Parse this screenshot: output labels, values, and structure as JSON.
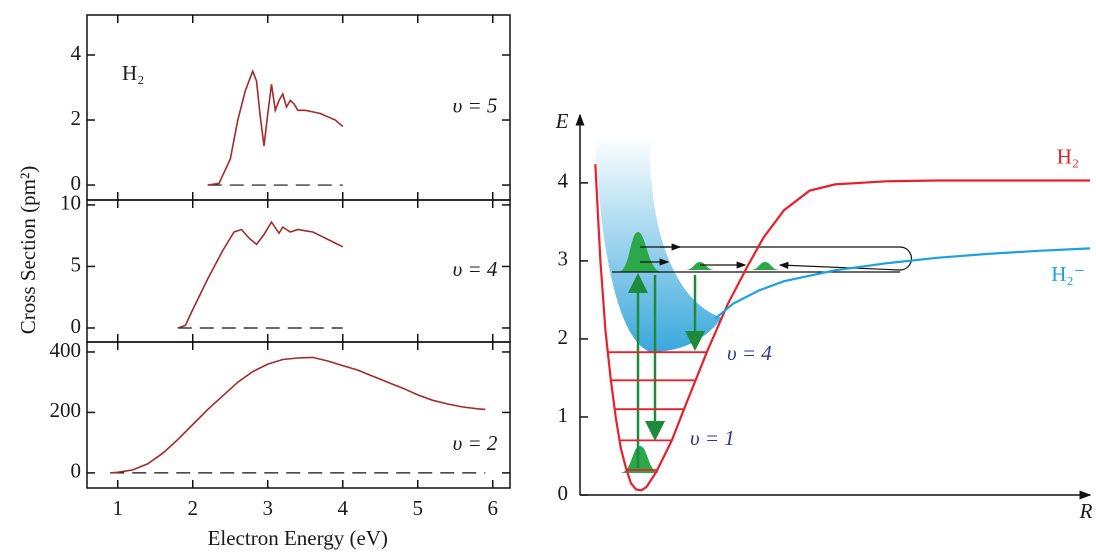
{
  "chart_data": [
    {
      "type": "stacked-line",
      "xlabel": "Electron Energy (eV)",
      "ylabel": "Cross Section (pm²)",
      "annotation": "H₂",
      "xlim": [
        0.59,
        6.23
      ],
      "xticks": [
        1,
        2,
        3,
        4,
        5,
        6
      ],
      "color": "#a52a2a",
      "panels": [
        {
          "label": "υ = 5",
          "ylim": [
            -0.46,
            5.23
          ],
          "yticks": [
            0,
            2,
            4
          ],
          "x": [
            2.2,
            2.35,
            2.5,
            2.6,
            2.7,
            2.8,
            2.85,
            2.9,
            2.95,
            3.0,
            3.05,
            3.1,
            3.15,
            3.2,
            3.25,
            3.3,
            3.35,
            3.4,
            3.5,
            3.6,
            3.7,
            3.8,
            3.9,
            4.0
          ],
          "values": [
            0,
            0.05,
            0.8,
            2.0,
            2.9,
            3.5,
            3.2,
            2.1,
            1.2,
            2.2,
            3.1,
            2.3,
            2.6,
            2.8,
            2.4,
            2.6,
            2.5,
            2.3,
            2.3,
            2.25,
            2.2,
            2.1,
            2.0,
            1.8
          ]
        },
        {
          "label": "υ = 4",
          "ylim": [
            -1.14,
            10.4
          ],
          "yticks": [
            0,
            5,
            10
          ],
          "x": [
            1.8,
            1.9,
            2.0,
            2.2,
            2.4,
            2.55,
            2.65,
            2.75,
            2.85,
            2.95,
            3.05,
            3.15,
            3.2,
            3.3,
            3.4,
            3.5,
            3.6,
            3.7,
            3.8,
            3.9,
            4.0
          ],
          "values": [
            0,
            0.2,
            1.5,
            4,
            6.3,
            7.8,
            8.0,
            7.3,
            6.8,
            7.6,
            8.6,
            7.7,
            8.2,
            7.8,
            8.0,
            7.9,
            7.8,
            7.5,
            7.2,
            6.9,
            6.6
          ]
        },
        {
          "label": "υ = 2",
          "ylim": [
            -50,
            433
          ],
          "yticks": [
            0,
            200,
            400
          ],
          "x": [
            0.9,
            1.0,
            1.2,
            1.4,
            1.6,
            1.8,
            2.0,
            2.2,
            2.4,
            2.6,
            2.8,
            3.0,
            3.2,
            3.4,
            3.6,
            3.8,
            4.0,
            4.2,
            4.4,
            4.6,
            4.8,
            5.0,
            5.2,
            5.4,
            5.6,
            5.8,
            5.9
          ],
          "values": [
            0,
            2,
            10,
            30,
            65,
            110,
            160,
            210,
            255,
            300,
            335,
            360,
            375,
            380,
            382,
            370,
            355,
            340,
            320,
            300,
            280,
            258,
            240,
            228,
            218,
            212,
            210
          ]
        }
      ]
    },
    {
      "type": "line",
      "xlabel": "R",
      "ylabel": "E",
      "xlim": [
        0,
        10
      ],
      "ylim": [
        0,
        4.87
      ],
      "yticks": [
        0,
        1,
        2,
        3,
        4
      ],
      "series": [
        {
          "name": "H₂",
          "color": "#e8202a",
          "x": [
            0.3,
            0.4,
            0.5,
            0.6,
            0.7,
            0.8,
            0.9,
            1.0,
            1.1,
            1.2,
            1.3,
            1.5,
            1.8,
            2.1,
            2.5,
            2.9,
            3.3,
            3.6,
            4.0,
            4.5,
            5.0,
            6,
            7,
            8,
            10
          ],
          "values": [
            4.24,
            3.0,
            2.1,
            1.5,
            1.0,
            0.6,
            0.35,
            0.15,
            0.07,
            0.06,
            0.1,
            0.3,
            0.7,
            1.2,
            1.85,
            2.45,
            2.95,
            3.3,
            3.65,
            3.9,
            3.98,
            4.02,
            4.03,
            4.03,
            4.03
          ]
        },
        {
          "name": "H₂⁻",
          "color": "#1aa3dc",
          "x": [
            2.65,
            3.0,
            3.5,
            4.0,
            5,
            6,
            7,
            8,
            9,
            10
          ],
          "values": [
            2.26,
            2.45,
            2.62,
            2.74,
            2.88,
            2.97,
            3.04,
            3.09,
            3.13,
            3.16
          ]
        }
      ],
      "levels": [
        1.83,
        1.47,
        1.1,
        0.7,
        0.32
      ],
      "annotations": [
        "υ = 4",
        "υ = 1"
      ]
    }
  ]
}
